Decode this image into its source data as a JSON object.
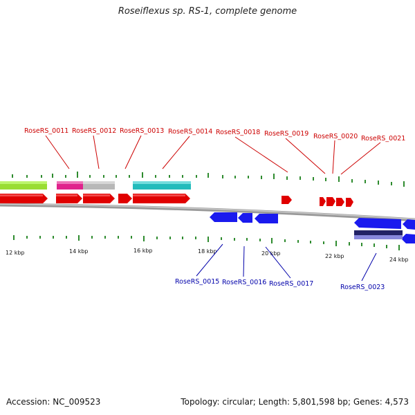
{
  "title": "Roseiflexus sp. RS-1, complete genome",
  "footer": {
    "accession": "Accession: NC_009523",
    "summary": "Topology: circular; Length: 5,801,598 bp; Genes: 4,573"
  },
  "colors": {
    "forward_gene": "#e00000",
    "reverse_gene": "#1a1aee",
    "backbone": "#888888",
    "tick": "#2e8b2e",
    "label_forward": "#cc0000",
    "label_reverse": "#0000aa"
  },
  "ticks": [
    "12 kbp",
    "14 kbp",
    "16 kbp",
    "18 kbp",
    "20 kbp",
    "22 kbp",
    "24 kbp"
  ],
  "forward_labels": [
    "RoseRS_0011",
    "RoseRS_0012",
    "RoseRS_0013",
    "RoseRS_0014",
    "RoseRS_0018",
    "RoseRS_0019",
    "RoseRS_0020",
    "RoseRS_0021"
  ],
  "reverse_labels": [
    "RoseRS_0015",
    "RoseRS_0016",
    "RoseRS_0017",
    "RoseRS_0023"
  ]
}
